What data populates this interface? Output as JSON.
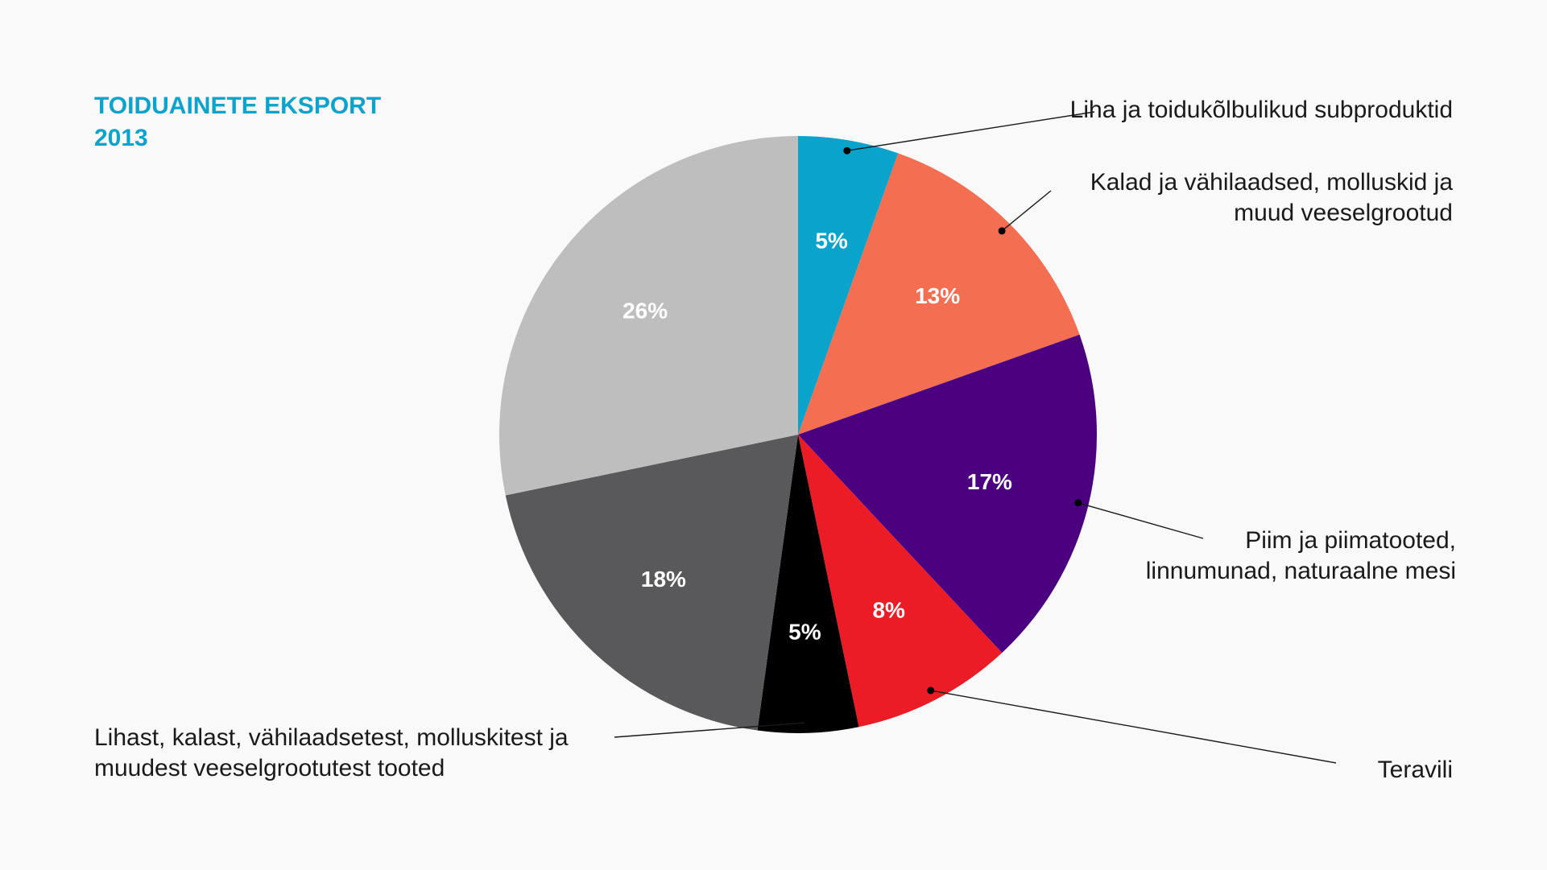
{
  "chart_data": {
    "type": "pie",
    "title_lines": [
      "TOIDUAINETE EKSPORT",
      "2013"
    ],
    "slices": [
      {
        "label_lines": [
          "Liha ja toidukõlbulikud subproduktid"
        ],
        "value": 5,
        "value_label": "5%",
        "color": "#0aa3cc"
      },
      {
        "label_lines": [
          "Kalad ja vähilaadsed, molluskid ja",
          "muud veeselgrootud"
        ],
        "value": 13,
        "value_label": "13%",
        "color": "#f46e52"
      },
      {
        "label_lines": [
          "Piim ja piimatooted,",
          "linnumunad, naturaalne mesi"
        ],
        "value": 17,
        "value_label": "17%",
        "color": "#4b0080"
      },
      {
        "label_lines": [
          "Teravili"
        ],
        "value": 8,
        "value_label": "8%",
        "color": "#ec1c27"
      },
      {
        "label_lines": [
          "Lihast, kalast, vähilaadsetest, molluskitest ja",
          "muudest veeselgrootutest tooted"
        ],
        "value": 5,
        "value_label": "5%",
        "color": "#000000"
      },
      {
        "label_lines": [],
        "value": 18,
        "value_label": "18%",
        "color": "#59595b"
      },
      {
        "label_lines": [],
        "value": 26,
        "value_label": "26%",
        "color": "#bebebe"
      }
    ]
  }
}
